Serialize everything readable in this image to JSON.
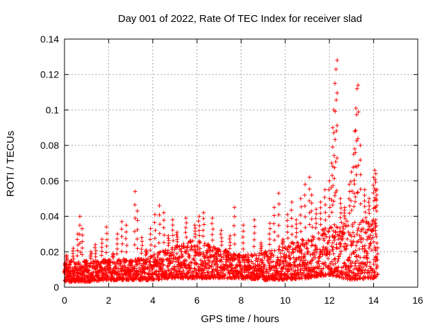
{
  "chart_data": {
    "type": "scatter",
    "title": "Day 001 of 2022, Rate Of TEC Index for receiver slad",
    "xlabel": "GPS time / hours",
    "ylabel": "ROTI / TECUs",
    "xlim": [
      0,
      16
    ],
    "ylim": [
      0,
      0.14
    ],
    "x_ticks": [
      0,
      2,
      4,
      6,
      8,
      10,
      12,
      14,
      16
    ],
    "y_ticks": [
      0,
      0.02,
      0.04,
      0.06,
      0.08,
      0.1,
      0.12,
      0.14
    ],
    "x_tick_labels": [
      "0",
      "2",
      "4",
      "6",
      "8",
      "10",
      "12",
      "14",
      "16"
    ],
    "y_tick_labels": [
      "0",
      "0.02",
      "0.04",
      "0.06",
      "0.08",
      "0.1",
      "0.12",
      "0.14"
    ],
    "grid": true,
    "marker": "+",
    "colors": {
      "series": "#ff0000",
      "grid": "#a0a0a0",
      "axes": "#000000"
    },
    "series": [
      {
        "name": "ROTI",
        "points": [
          [
            0.05,
            0.012
          ],
          [
            0.1,
            0.018
          ],
          [
            0.2,
            0.008
          ],
          [
            0.3,
            0.015
          ],
          [
            0.4,
            0.022
          ],
          [
            0.5,
            0.01
          ],
          [
            0.6,
            0.03
          ],
          [
            0.7,
            0.04
          ],
          [
            0.8,
            0.033
          ],
          [
            0.9,
            0.014
          ],
          [
            1.0,
            0.009
          ],
          [
            1.2,
            0.02
          ],
          [
            1.4,
            0.024
          ],
          [
            1.5,
            0.011
          ],
          [
            1.7,
            0.027
          ],
          [
            1.9,
            0.034
          ],
          [
            2.0,
            0.013
          ],
          [
            2.2,
            0.019
          ],
          [
            2.4,
            0.03
          ],
          [
            2.6,
            0.037
          ],
          [
            2.8,
            0.035
          ],
          [
            3.0,
            0.012
          ],
          [
            3.2,
            0.054
          ],
          [
            3.3,
            0.043
          ],
          [
            3.5,
            0.028
          ],
          [
            3.7,
            0.021
          ],
          [
            3.9,
            0.033
          ],
          [
            4.1,
            0.041
          ],
          [
            4.3,
            0.046
          ],
          [
            4.5,
            0.042
          ],
          [
            4.7,
            0.029
          ],
          [
            4.9,
            0.038
          ],
          [
            5.1,
            0.031
          ],
          [
            5.3,
            0.017
          ],
          [
            5.5,
            0.039
          ],
          [
            5.7,
            0.026
          ],
          [
            5.9,
            0.035
          ],
          [
            6.1,
            0.04
          ],
          [
            6.3,
            0.042
          ],
          [
            6.5,
            0.023
          ],
          [
            6.7,
            0.039
          ],
          [
            6.9,
            0.016
          ],
          [
            7.1,
            0.032
          ],
          [
            7.3,
            0.021
          ],
          [
            7.5,
            0.029
          ],
          [
            7.7,
            0.045
          ],
          [
            7.9,
            0.018
          ],
          [
            8.1,
            0.035
          ],
          [
            8.3,
            0.014
          ],
          [
            8.6,
            0.038
          ],
          [
            8.9,
            0.025
          ],
          [
            9.1,
            0.019
          ],
          [
            9.3,
            0.036
          ],
          [
            9.5,
            0.045
          ],
          [
            9.7,
            0.053
          ],
          [
            9.9,
            0.027
          ],
          [
            10.1,
            0.041
          ],
          [
            10.3,
            0.048
          ],
          [
            10.5,
            0.038
          ],
          [
            10.7,
            0.05
          ],
          [
            10.9,
            0.058
          ],
          [
            11.1,
            0.062
          ],
          [
            11.2,
            0.052
          ],
          [
            11.4,
            0.044
          ],
          [
            11.6,
            0.048
          ],
          [
            11.8,
            0.055
          ],
          [
            12.0,
            0.06
          ],
          [
            12.1,
            0.07
          ],
          [
            12.15,
            0.09
          ],
          [
            12.2,
            0.1
          ],
          [
            12.25,
            0.115
          ],
          [
            12.3,
            0.123
          ],
          [
            12.35,
            0.128
          ],
          [
            12.5,
            0.05
          ],
          [
            12.7,
            0.045
          ],
          [
            12.9,
            0.058
          ],
          [
            13.0,
            0.065
          ],
          [
            13.1,
            0.075
          ],
          [
            13.15,
            0.088
          ],
          [
            13.2,
            0.101
          ],
          [
            13.25,
            0.112
          ],
          [
            13.3,
            0.114
          ],
          [
            13.4,
            0.08
          ],
          [
            13.6,
            0.055
          ],
          [
            13.8,
            0.05
          ],
          [
            14.0,
            0.062
          ],
          [
            14.05,
            0.066
          ],
          [
            14.1,
            0.064
          ],
          [
            14.15,
            0.055
          ],
          [
            14.1,
            0.03
          ]
        ]
      }
    ],
    "band_envelope": {
      "description": "dense baseline cloud of points, lower and upper bounds in data units per hour",
      "x": [
        0,
        1,
        2,
        3,
        4,
        5,
        6,
        7,
        8,
        9,
        10,
        11,
        12,
        13,
        14,
        14.2
      ],
      "low": [
        0.003,
        0.003,
        0.004,
        0.004,
        0.004,
        0.005,
        0.005,
        0.005,
        0.005,
        0.004,
        0.004,
        0.005,
        0.007,
        0.004,
        0.005,
        0.006
      ],
      "high": [
        0.014,
        0.015,
        0.016,
        0.016,
        0.018,
        0.024,
        0.027,
        0.022,
        0.018,
        0.02,
        0.024,
        0.028,
        0.035,
        0.038,
        0.04,
        0.04
      ]
    }
  }
}
